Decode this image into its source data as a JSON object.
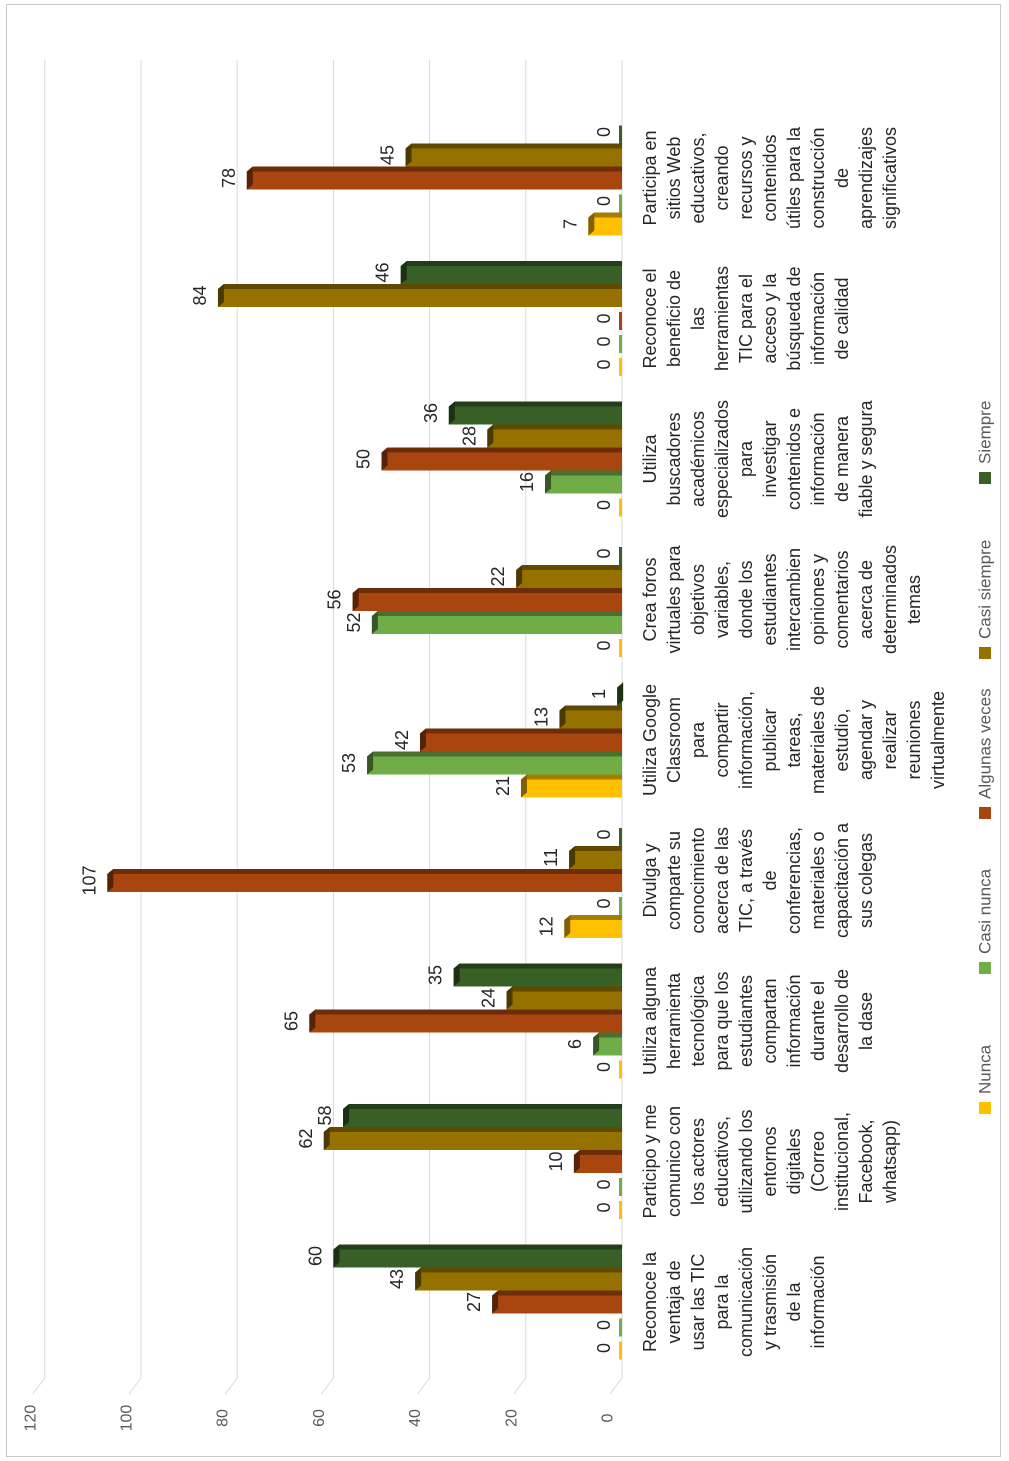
{
  "chart_data": {
    "type": "bar",
    "orientation": "rotated 90 degrees clockwise (value axis runs top-to-bottom along the left, categories listed top-to-bottom)",
    "ylim": [
      0,
      120
    ],
    "yticks": [
      0,
      20,
      40,
      60,
      80,
      100,
      120
    ],
    "grid": true,
    "legend_position": "bottom",
    "categories": [
      "Reconoce la ventaja de usar las TIC para la comunicación y trasmisión de la información",
      "Participo y me comunico con los actores educativos, utilizando los entornos digitales (Correo institucional, Facebook, whatsapp)",
      "Utiliza alguna herramienta tecnológica para que los estudiantes compartan información durante el desarrollo de la dase",
      "Divulga y comparte su conocimiento acerca de las TIC, a través de conferencias, materiales o capacitación a sus colegas",
      "Utiliza Google Classroom para compartir información, publicar tareas, materiales de estudio, agendar y realizar reuniones virtualmente",
      "Crea foros virtuales para objetivos variables, donde los estudiantes intercambien opiniones y comentarios acerca de determinados temas",
      "Utiliza buscadores académicos especializados para investigar contenidos e información de manera fiable y segura",
      "Reconoce el beneficio de las herramientas TIC para el acceso y la búsqueda de información de calidad",
      "Participa en sitios Web educativos, creando recursos y contenidos útiles para la construcción de aprendizajes significativos"
    ],
    "category_lines": [
      [
        "Reconoce la",
        "ventaja de",
        "usar las TIC",
        "para la",
        "comunicación",
        "y trasmisión",
        "de la",
        "información"
      ],
      [
        "Participo y me",
        "comunico con",
        "los actores",
        "educativos,",
        "utilizando los",
        "entornos",
        "digitales",
        "(Correo",
        "institucional,",
        "Facebook,",
        "whatsapp)"
      ],
      [
        "Utiliza alguna",
        "herramienta",
        "tecnológica",
        "para que los",
        "estudiantes",
        "compartan",
        "información",
        "durante el",
        "desarrollo de",
        "la dase"
      ],
      [
        "Divulga y",
        "comparte su",
        "conocimiento",
        "acerca de las",
        "TIC, a través",
        "de",
        "conferencias,",
        "materiales o",
        "capacitación a",
        "sus colegas"
      ],
      [
        "Utiliza Google",
        "Classroom",
        "para",
        "compartir",
        "información,",
        "publicar",
        "tareas,",
        "materiales de",
        "estudio,",
        "agendar y",
        "realizar",
        "reuniones",
        "virtualmente"
      ],
      [
        "Crea foros",
        "virtuales para",
        "objetivos",
        "variables,",
        "donde los",
        "estudiantes",
        "intercambien",
        "opiniones y",
        "comentarios",
        "acerca de",
        "determinados",
        "temas"
      ],
      [
        "Utiliza",
        "buscadores",
        "académicos",
        "especializados",
        "para",
        "investigar",
        "contenidos e",
        "información",
        "de manera",
        "fiable y segura"
      ],
      [
        "Reconoce el",
        "beneficio de",
        "las",
        "herramientas",
        "TIC para el",
        "acceso y la",
        "búsqueda de",
        "información",
        "de calidad"
      ],
      [
        "Participa en",
        "sitios Web",
        "educativos,",
        "creando",
        "recursos y",
        "contenidos",
        "útiles para la",
        "construcción",
        "de",
        "aprendizajes",
        "significativos"
      ]
    ],
    "series": [
      {
        "name": "Nunca",
        "color": "#FFC000",
        "values": [
          0,
          0,
          0,
          12,
          21,
          0,
          0,
          0,
          7
        ]
      },
      {
        "name": "Casi nunca",
        "color": "#70AD47",
        "values": [
          0,
          0,
          6,
          0,
          53,
          52,
          16,
          0,
          0
        ]
      },
      {
        "name": "Algunas veces",
        "color": "#A9450E",
        "values": [
          27,
          10,
          65,
          107,
          42,
          56,
          50,
          0,
          78
        ]
      },
      {
        "name": "Casi siempre",
        "color": "#957200",
        "values": [
          43,
          62,
          24,
          11,
          13,
          22,
          28,
          84,
          45
        ]
      },
      {
        "name": "Siempre",
        "color": "#375F26",
        "values": [
          60,
          58,
          35,
          0,
          1,
          0,
          36,
          46,
          0
        ]
      }
    ]
  }
}
